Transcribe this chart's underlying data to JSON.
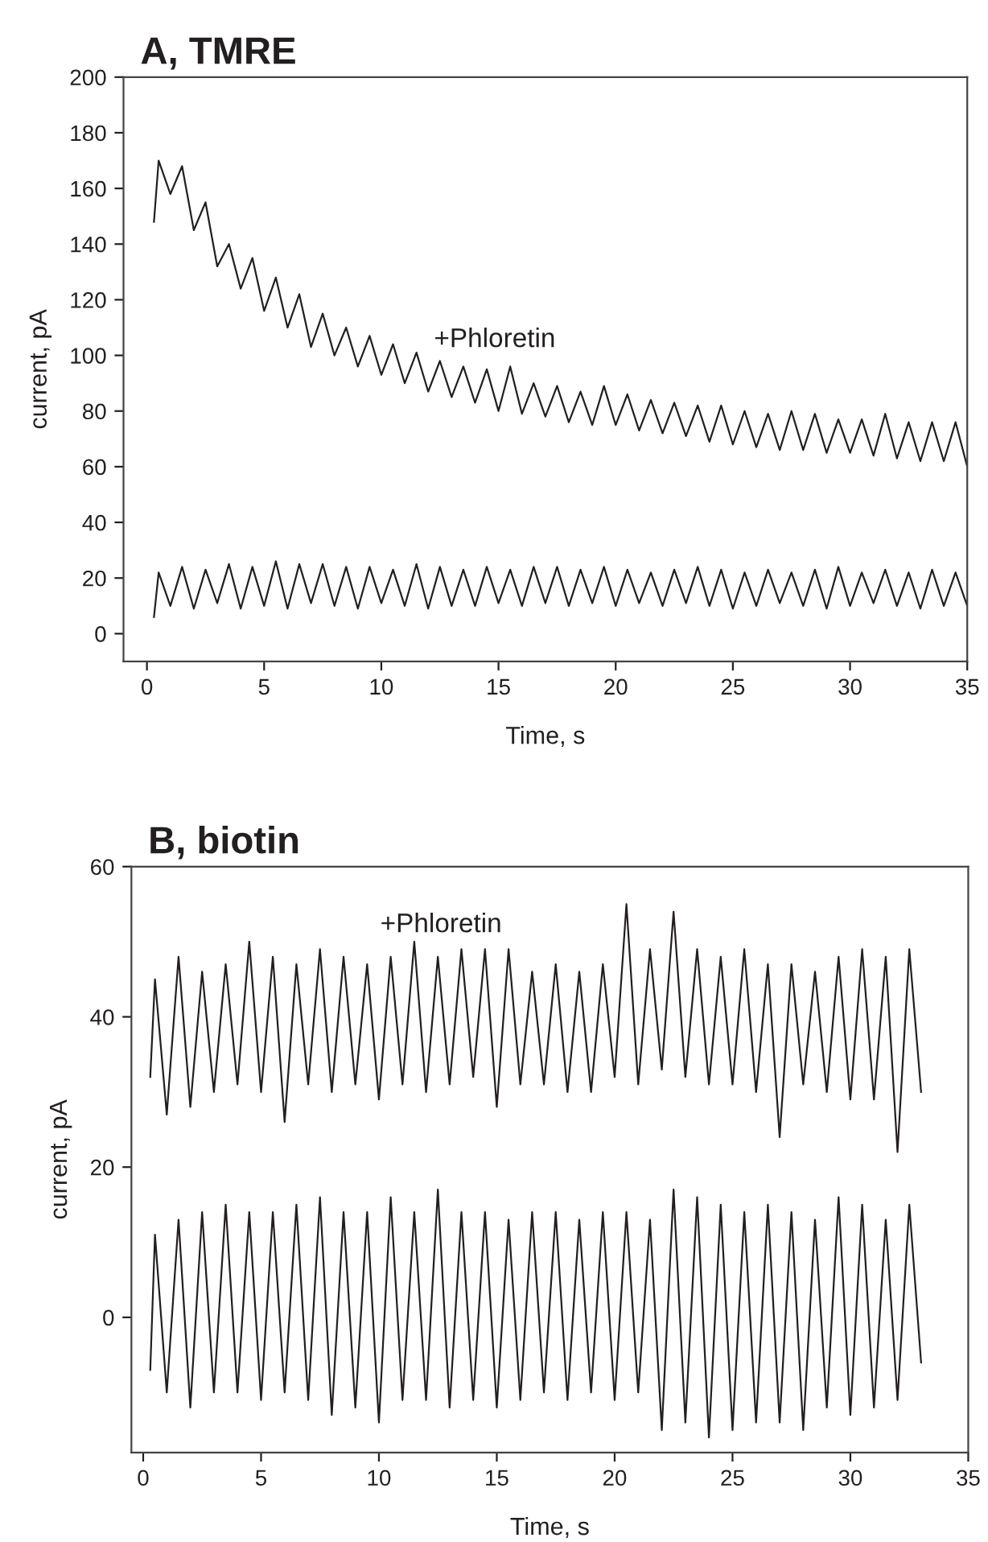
{
  "chart_data": [
    {
      "type": "line",
      "title": "A, TMRE",
      "xlabel": "Time, s",
      "ylabel": "current, pA",
      "xlim": [
        -1,
        35
      ],
      "xticks": [
        0,
        5,
        10,
        15,
        20,
        25,
        30,
        35
      ],
      "ylim": [
        -10,
        200
      ],
      "yticks": [
        0,
        20,
        40,
        60,
        80,
        100,
        120,
        140,
        160,
        180,
        200
      ],
      "grid": false,
      "marker": "none",
      "line_style": "solid",
      "annotations": [
        "+Phloretin"
      ],
      "series": [
        {
          "color": "#231f20",
          "x": [
            0.3,
            0.5,
            1,
            1.5,
            2,
            2.5,
            3,
            3.5,
            4,
            4.5,
            5,
            5.5,
            6,
            6.5,
            7,
            7.5,
            8,
            8.5,
            9,
            9.5,
            10,
            10.5,
            11,
            11.5,
            12,
            12.5,
            13,
            13.5,
            14,
            14.5,
            15,
            15.5,
            16,
            16.5,
            17,
            17.5,
            18,
            18.5,
            19,
            19.5,
            20,
            20.5,
            21,
            21.5,
            22,
            22.5,
            23,
            23.5,
            24,
            24.5,
            25,
            25.5,
            26,
            26.5,
            27,
            27.5,
            28,
            28.5,
            29,
            29.5,
            30,
            30.5,
            31,
            31.5,
            32,
            32.5,
            33,
            33.5,
            34,
            34.5,
            35
          ],
          "values": [
            148,
            170,
            158,
            168,
            145,
            155,
            132,
            140,
            124,
            135,
            116,
            128,
            110,
            122,
            103,
            115,
            100,
            110,
            96,
            107,
            93,
            104,
            90,
            101,
            87,
            98,
            85,
            96,
            83,
            95,
            80,
            96,
            79,
            90,
            78,
            89,
            76,
            87,
            75,
            89,
            75,
            86,
            73,
            84,
            72,
            83,
            71,
            82,
            69,
            82,
            68,
            80,
            67,
            79,
            66,
            80,
            66,
            79,
            65,
            77,
            65,
            77,
            64,
            79,
            63,
            76,
            62,
            76,
            62,
            76,
            60
          ]
        },
        {
          "color": "#231f20",
          "x": [
            0.3,
            0.5,
            1,
            1.5,
            2,
            2.5,
            3,
            3.5,
            4,
            4.5,
            5,
            5.5,
            6,
            6.5,
            7,
            7.5,
            8,
            8.5,
            9,
            9.5,
            10,
            10.5,
            11,
            11.5,
            12,
            12.5,
            13,
            13.5,
            14,
            14.5,
            15,
            15.5,
            16,
            16.5,
            17,
            17.5,
            18,
            18.5,
            19,
            19.5,
            20,
            20.5,
            21,
            21.5,
            22,
            22.5,
            23,
            23.5,
            24,
            24.5,
            25,
            25.5,
            26,
            26.5,
            27,
            27.5,
            28,
            28.5,
            29,
            29.5,
            30,
            30.5,
            31,
            31.5,
            32,
            32.5,
            33,
            33.5,
            34,
            34.5,
            35
          ],
          "values": [
            6,
            22,
            10,
            24,
            9,
            23,
            11,
            25,
            9,
            24,
            10,
            26,
            9,
            25,
            11,
            25,
            10,
            24,
            9,
            24,
            11,
            23,
            10,
            25,
            9,
            24,
            10,
            23,
            10,
            24,
            11,
            23,
            10,
            24,
            11,
            24,
            10,
            23,
            11,
            24,
            10,
            23,
            11,
            22,
            10,
            23,
            11,
            24,
            10,
            23,
            9,
            22,
            10,
            23,
            11,
            22,
            10,
            23,
            9,
            24,
            10,
            22,
            11,
            23,
            10,
            22,
            9,
            23,
            10,
            22,
            10
          ]
        }
      ]
    },
    {
      "type": "line",
      "title": "B, biotin",
      "xlabel": "Time, s",
      "ylabel": "current, pA",
      "xlim": [
        -0.5,
        35
      ],
      "xticks": [
        0,
        5,
        10,
        15,
        20,
        25,
        30,
        35
      ],
      "ylim": [
        -18,
        60
      ],
      "yticks": [
        0,
        20,
        40,
        60
      ],
      "grid": false,
      "marker": "none",
      "line_style": "solid",
      "annotations": [
        "+Phloretin"
      ],
      "series": [
        {
          "color": "#231f20",
          "x": [
            0.3,
            0.5,
            1,
            1.5,
            2,
            2.5,
            3,
            3.5,
            4,
            4.5,
            5,
            5.5,
            6,
            6.5,
            7,
            7.5,
            8,
            8.5,
            9,
            9.5,
            10,
            10.5,
            11,
            11.5,
            12,
            12.5,
            13,
            13.5,
            14,
            14.5,
            15,
            15.5,
            16,
            16.5,
            17,
            17.5,
            18,
            18.5,
            19,
            19.5,
            20,
            20.5,
            21,
            21.5,
            22,
            22.5,
            23,
            23.5,
            24,
            24.5,
            25,
            25.5,
            26,
            26.5,
            27,
            27.5,
            28,
            28.5,
            29,
            29.5,
            30,
            30.5,
            31,
            31.5,
            32,
            32.5,
            33
          ],
          "values": [
            32,
            45,
            27,
            48,
            28,
            46,
            30,
            47,
            31,
            50,
            30,
            48,
            26,
            47,
            31,
            49,
            30,
            48,
            31,
            47,
            29,
            48,
            31,
            50,
            30,
            48,
            31,
            49,
            32,
            49,
            28,
            49,
            31,
            46,
            31,
            47,
            30,
            46,
            30,
            47,
            32,
            55,
            31,
            49,
            33,
            54,
            32,
            49,
            31,
            48,
            31,
            49,
            30,
            47,
            24,
            47,
            31,
            46,
            30,
            48,
            29,
            49,
            29,
            48,
            22,
            49,
            30
          ]
        },
        {
          "color": "#231f20",
          "x": [
            0.3,
            0.5,
            1,
            1.5,
            2,
            2.5,
            3,
            3.5,
            4,
            4.5,
            5,
            5.5,
            6,
            6.5,
            7,
            7.5,
            8,
            8.5,
            9,
            9.5,
            10,
            10.5,
            11,
            11.5,
            12,
            12.5,
            13,
            13.5,
            14,
            14.5,
            15,
            15.5,
            16,
            16.5,
            17,
            17.5,
            18,
            18.5,
            19,
            19.5,
            20,
            20.5,
            21,
            21.5,
            22,
            22.5,
            23,
            23.5,
            24,
            24.5,
            25,
            25.5,
            26,
            26.5,
            27,
            27.5,
            28,
            28.5,
            29,
            29.5,
            30,
            30.5,
            31,
            31.5,
            32,
            32.5,
            33
          ],
          "values": [
            -7,
            11,
            -10,
            13,
            -12,
            14,
            -10,
            15,
            -10,
            14,
            -11,
            14,
            -10,
            15,
            -11,
            16,
            -13,
            14,
            -12,
            14,
            -14,
            16,
            -11,
            14,
            -11,
            17,
            -12,
            14,
            -11,
            14,
            -12,
            13,
            -11,
            14,
            -10,
            14,
            -11,
            13,
            -10,
            14,
            -11,
            14,
            -10,
            13,
            -15,
            17,
            -14,
            16,
            -16,
            15,
            -15,
            14,
            -14,
            15,
            -14,
            14,
            -15,
            13,
            -12,
            16,
            -13,
            15,
            -12,
            13,
            -11,
            15,
            -6
          ]
        }
      ]
    }
  ]
}
